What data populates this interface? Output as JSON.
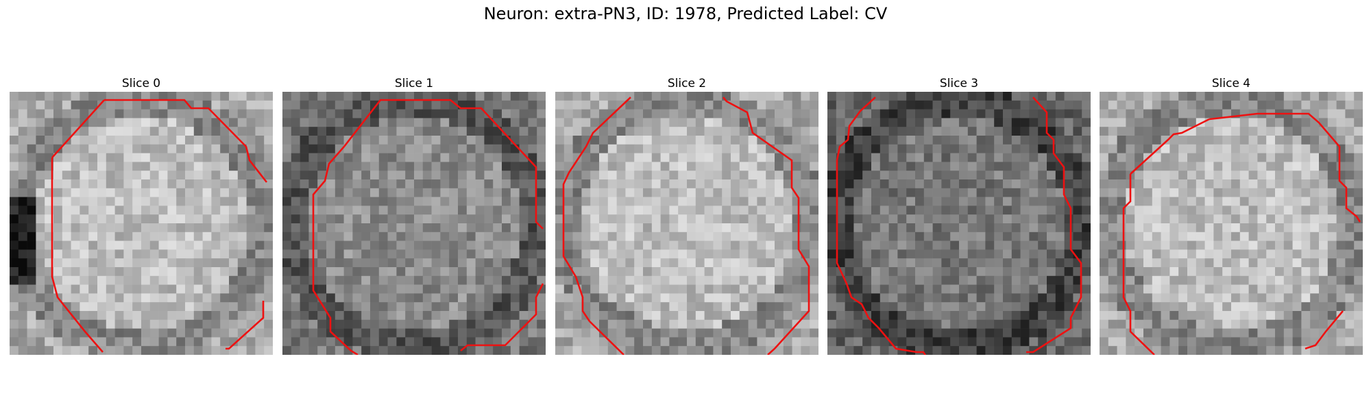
{
  "figure": {
    "title": "Neuron: extra-PN3, ID: 1978, Predicted Label: CV"
  },
  "slices": [
    {
      "label": "Slice 0",
      "brightness": "bright",
      "dark_left_edge": true
    },
    {
      "label": "Slice 1",
      "brightness": "medium",
      "dark_left_edge": false
    },
    {
      "label": "Slice 2",
      "brightness": "bright",
      "dark_left_edge": false
    },
    {
      "label": "Slice 3",
      "brightness": "dim",
      "dark_left_edge": false
    },
    {
      "label": "Slice 4",
      "brightness": "bright",
      "dark_left_edge": false
    }
  ],
  "colors": {
    "contour": "#ee1111",
    "background": "#ffffff"
  }
}
